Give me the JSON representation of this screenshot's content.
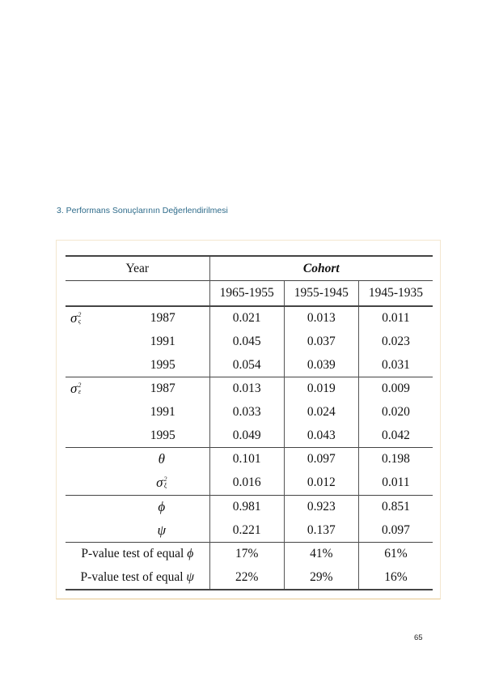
{
  "section_heading": "3. Performans Sonuçlarının Değerlendirilmesi",
  "table": {
    "year_header": "Year",
    "cohort_header": "Cohort",
    "cohorts": [
      "1965-1955",
      "1955-1945",
      "1945-1935"
    ],
    "sigma_zeta": {
      "symbol": "σ",
      "sub": "ς",
      "sup": "2",
      "rows": [
        {
          "year": "1987",
          "values": [
            "0.021",
            "0.013",
            "0.011"
          ]
        },
        {
          "year": "1991",
          "values": [
            "0.045",
            "0.037",
            "0.023"
          ]
        },
        {
          "year": "1995",
          "values": [
            "0.054",
            "0.039",
            "0.031"
          ]
        }
      ]
    },
    "sigma_eps": {
      "symbol": "σ",
      "sub": "ε",
      "sup": "2",
      "rows": [
        {
          "year": "1987",
          "values": [
            "0.013",
            "0.019",
            "0.009"
          ]
        },
        {
          "year": "1991",
          "values": [
            "0.033",
            "0.024",
            "0.020"
          ]
        },
        {
          "year": "1995",
          "values": [
            "0.049",
            "0.043",
            "0.042"
          ]
        }
      ]
    },
    "theta": {
      "label": "θ",
      "values": [
        "0.101",
        "0.097",
        "0.198"
      ]
    },
    "sigma_xi": {
      "label": "σ",
      "sub": "ξ",
      "sup": "2",
      "values": [
        "0.016",
        "0.012",
        "0.011"
      ]
    },
    "phi": {
      "label": "ϕ",
      "values": [
        "0.981",
        "0.923",
        "0.851"
      ]
    },
    "psi": {
      "label": "ψ",
      "values": [
        "0.221",
        "0.137",
        "0.097"
      ]
    },
    "pvalue_phi": {
      "label_text": "P-value test of equal ",
      "symbol": "ϕ",
      "values": [
        "17%",
        "41%",
        "61%"
      ]
    },
    "pvalue_psi": {
      "label_text": "P-value test of equal ",
      "symbol": "ψ",
      "values": [
        "22%",
        "29%",
        "16%"
      ]
    }
  },
  "page_number": "65"
}
